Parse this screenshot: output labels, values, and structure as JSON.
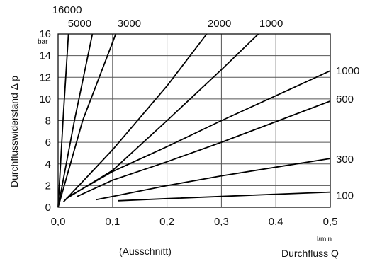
{
  "chart_data": {
    "type": "line",
    "xlabel": "Durchfluss Q",
    "xunit": "l/min",
    "ylabel": "Durchflusswiderstand Δ p",
    "yunit": "bar",
    "subtitle": "(Ausschnitt)",
    "xlim": [
      0,
      0.5
    ],
    "ylim": [
      0,
      16
    ],
    "xticks": [
      "0,0",
      "0,1",
      "0,2",
      "0,3",
      "0,4",
      "0,5"
    ],
    "yticks": [
      "0",
      "2",
      "4",
      "6",
      "8",
      "10",
      "12",
      "14",
      "16"
    ],
    "grid": true,
    "series": [
      {
        "name": "16000",
        "x": [
          0.0,
          0.009,
          0.019
        ],
        "y": [
          0,
          8,
          16
        ]
      },
      {
        "name": "5000",
        "x": [
          0.0,
          0.03,
          0.063
        ],
        "y": [
          0,
          8,
          16
        ]
      },
      {
        "name": "3000",
        "x": [
          0.0,
          0.045,
          0.106
        ],
        "y": [
          0,
          8,
          16
        ]
      },
      {
        "name": "2000",
        "x": [
          0.01,
          0.1,
          0.2,
          0.273
        ],
        "y": [
          0.5,
          5.3,
          11.2,
          16
        ]
      },
      {
        "name": "1000",
        "x": [
          0.015,
          0.1,
          0.2,
          0.3,
          0.368
        ],
        "y": [
          0.8,
          3.4,
          8.0,
          12.7,
          16
        ]
      },
      {
        "name": "1000",
        "x": [
          0.02,
          0.1,
          0.2,
          0.3,
          0.4,
          0.5
        ],
        "y": [
          1.0,
          3.3,
          5.6,
          8.0,
          10.3,
          12.6
        ]
      },
      {
        "name": "600",
        "x": [
          0.035,
          0.1,
          0.2,
          0.3,
          0.4,
          0.5
        ],
        "y": [
          1.0,
          2.5,
          4.2,
          6.0,
          7.9,
          9.8
        ]
      },
      {
        "name": "300",
        "x": [
          0.07,
          0.1,
          0.2,
          0.3,
          0.4,
          0.5
        ],
        "y": [
          0.7,
          1.0,
          2.0,
          2.9,
          3.7,
          4.5
        ]
      },
      {
        "name": "100",
        "x": [
          0.11,
          0.2,
          0.3,
          0.4,
          0.5
        ],
        "y": [
          0.6,
          0.8,
          1.0,
          1.2,
          1.4
        ]
      }
    ]
  }
}
